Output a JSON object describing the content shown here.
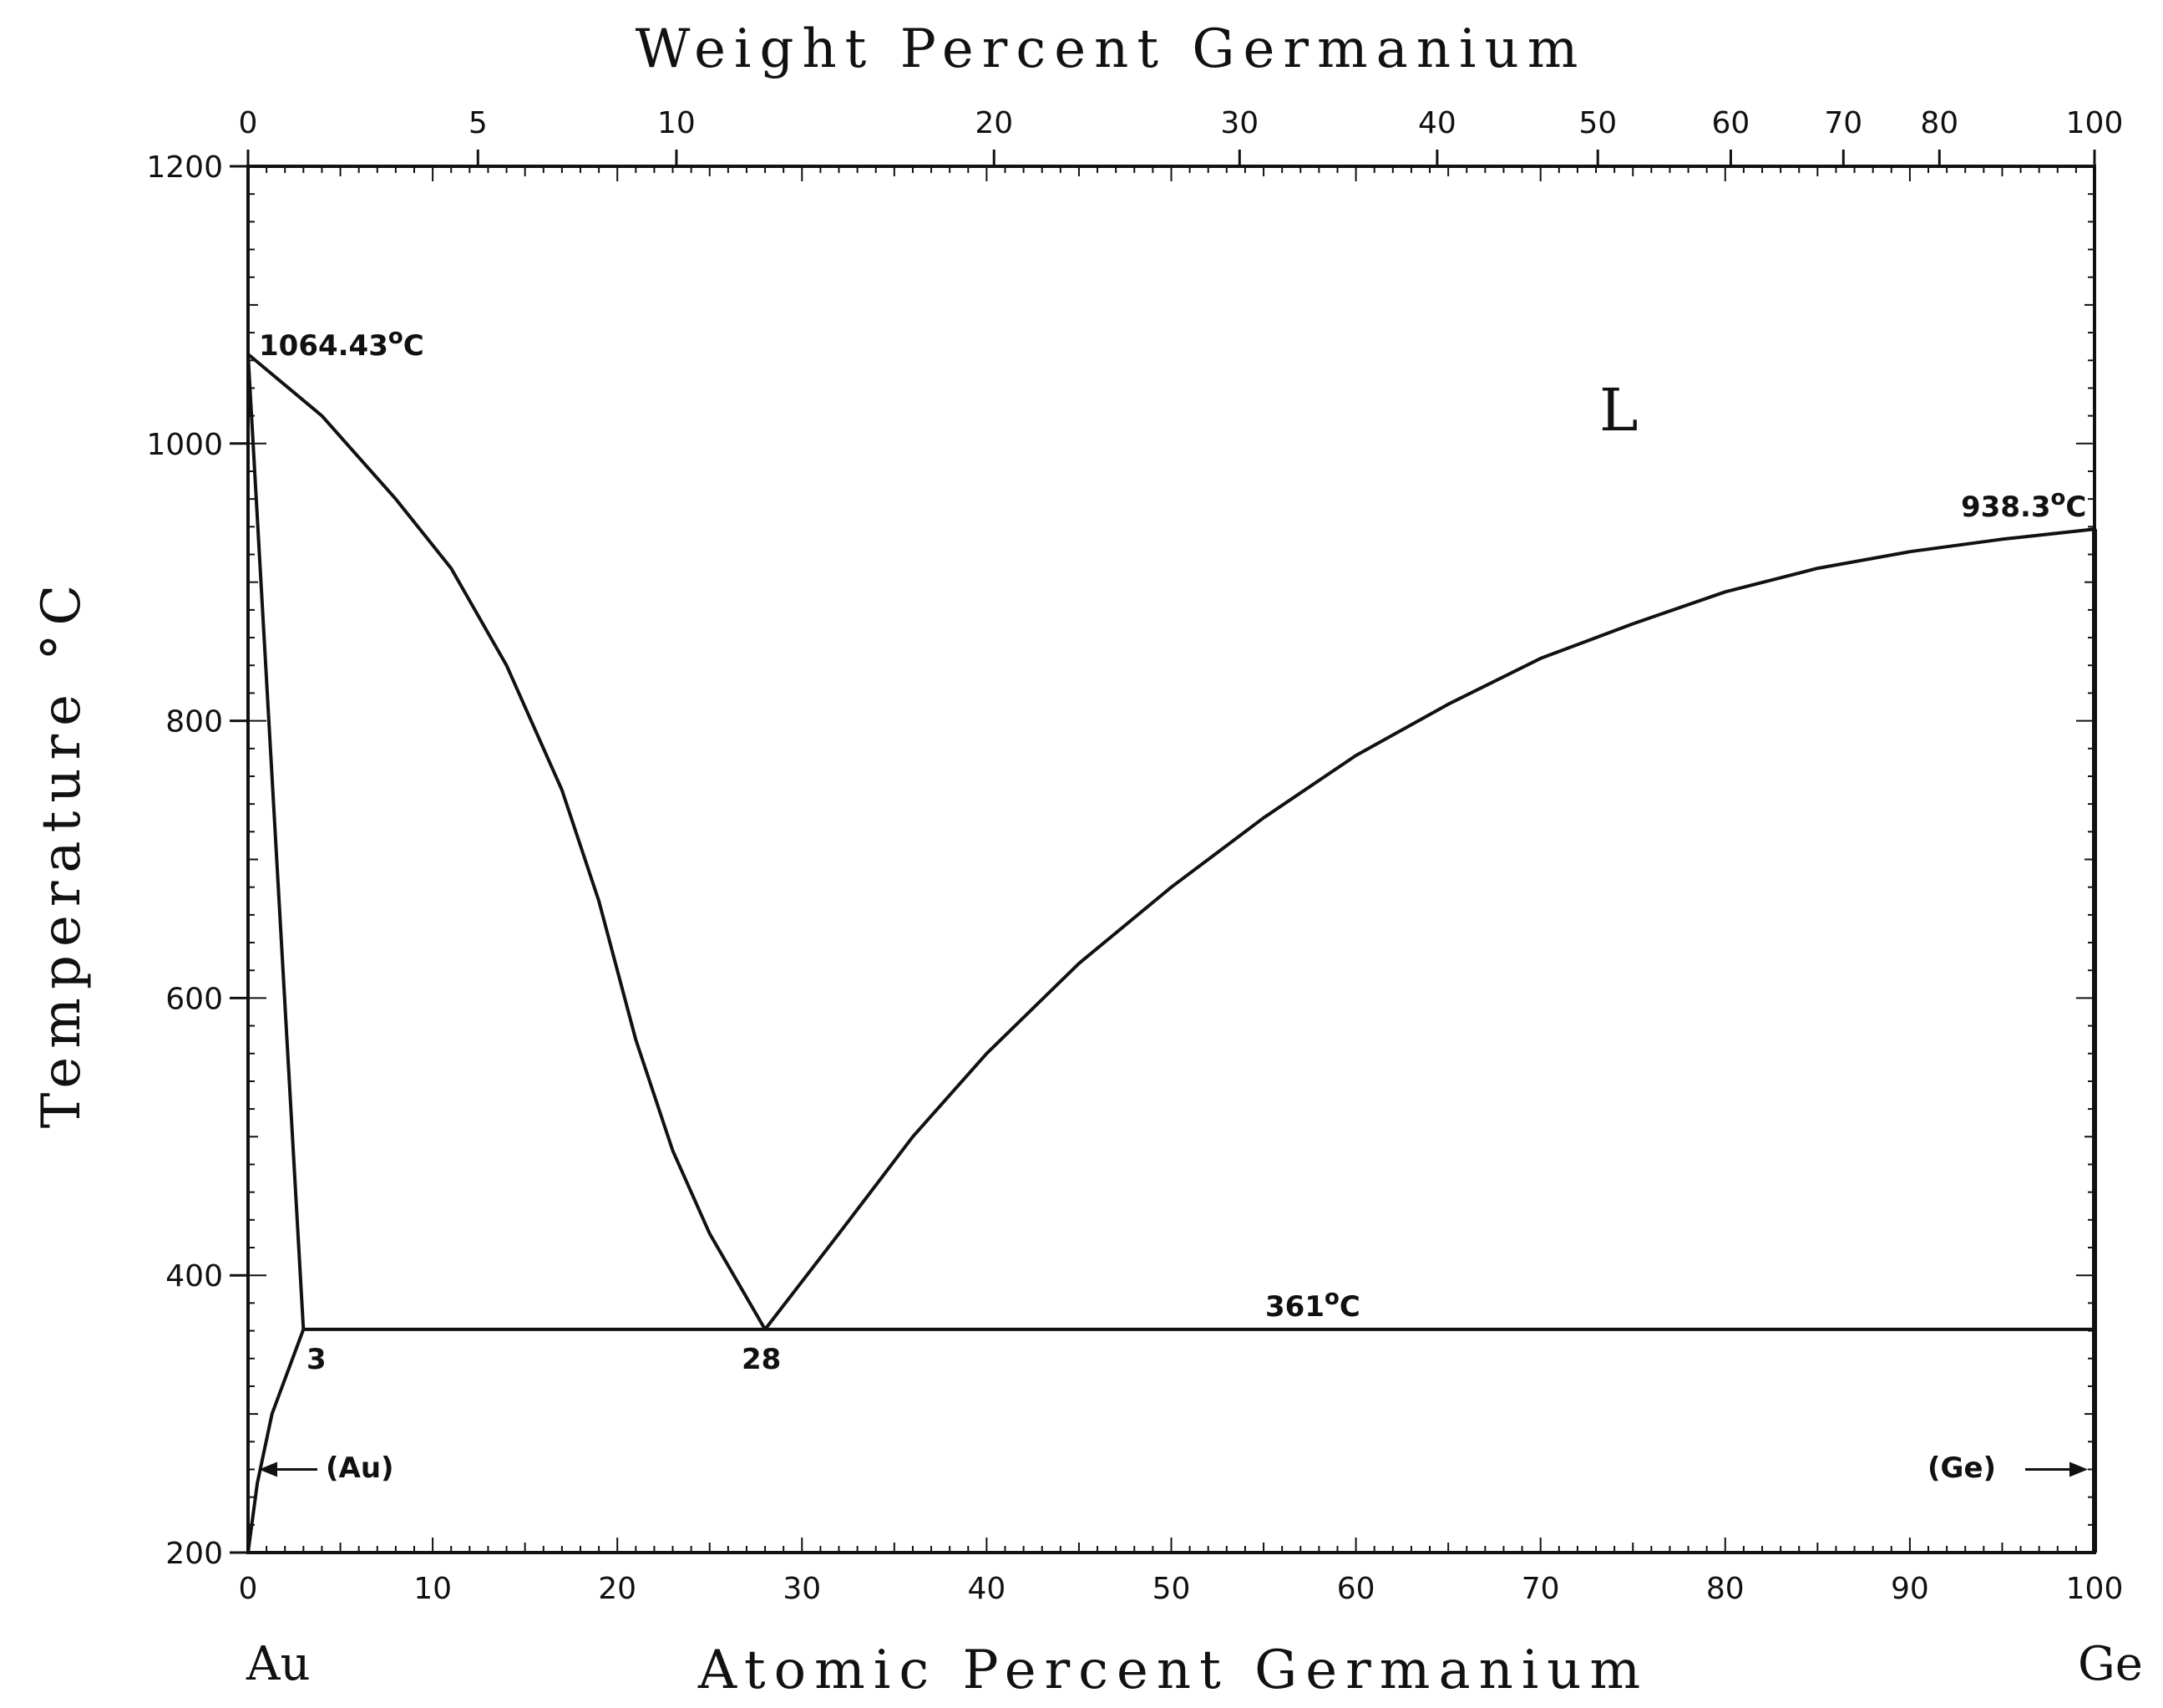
{
  "chart_data": {
    "type": "line",
    "title": "",
    "xlabel": "Atomic Percent Germanium",
    "x2label": "Weight Percent Germanium",
    "ylabel": "Temperature °C",
    "xlim": [
      0,
      100
    ],
    "ylim": [
      200,
      1200
    ],
    "x_ticks": [
      0,
      10,
      20,
      30,
      40,
      50,
      60,
      70,
      80,
      90,
      100
    ],
    "y_ticks": [
      200,
      400,
      600,
      800,
      1000,
      1200
    ],
    "top_ticks": [
      {
        "label": "0",
        "at": 0
      },
      {
        "label": "5",
        "at": 12.45
      },
      {
        "label": "10",
        "at": 23.2
      },
      {
        "label": "20",
        "at": 40.4
      },
      {
        "label": "30",
        "at": 53.7
      },
      {
        "label": "40",
        "at": 64.4
      },
      {
        "label": "50",
        "at": 73.1
      },
      {
        "label": "60",
        "at": 80.3
      },
      {
        "label": "70",
        "at": 86.4
      },
      {
        "label": "80",
        "at": 91.6
      },
      {
        "label": "100",
        "at": 100
      }
    ],
    "series": [
      {
        "points": [
          [
            0,
            1064.43
          ],
          [
            3,
            361
          ]
        ]
      },
      {
        "points": [
          [
            0,
            200
          ],
          [
            0.5,
            250
          ],
          [
            1.3,
            300
          ],
          [
            3,
            361
          ]
        ]
      },
      {
        "points": [
          [
            0,
            1064.43
          ],
          [
            4,
            1020
          ],
          [
            8,
            960
          ],
          [
            11,
            910
          ],
          [
            14,
            840
          ],
          [
            17,
            750
          ],
          [
            19,
            670
          ],
          [
            21,
            570
          ],
          [
            23,
            490
          ],
          [
            25,
            430
          ],
          [
            28,
            361
          ]
        ]
      },
      {
        "points": [
          [
            28,
            361
          ],
          [
            32,
            430
          ],
          [
            36,
            500
          ],
          [
            40,
            560
          ],
          [
            45,
            625
          ],
          [
            50,
            680
          ],
          [
            55,
            730
          ],
          [
            60,
            775
          ],
          [
            65,
            812
          ],
          [
            70,
            845
          ],
          [
            75,
            870
          ],
          [
            80,
            893
          ],
          [
            85,
            910
          ],
          [
            90,
            922
          ],
          [
            95,
            931
          ],
          [
            100,
            938.3
          ]
        ]
      },
      {
        "points": [
          [
            3,
            361
          ],
          [
            28,
            361
          ],
          [
            100,
            361
          ]
        ]
      },
      {
        "points": [
          [
            100,
            200
          ],
          [
            100,
            938.3
          ]
        ]
      }
    ],
    "annotations": {
      "au_melt": {
        "text": "1064.43",
        "sup": "o",
        "unit": "C"
      },
      "ge_melt": {
        "text": "938.3",
        "sup": "o",
        "unit": "C"
      },
      "eutectic": {
        "text": "361",
        "sup": "o",
        "unit": "C"
      },
      "comp_3": "3",
      "comp_28": "28",
      "liquid": "L",
      "au_phase": "(Au)",
      "ge_phase": "(Ge)",
      "left_element": "Au",
      "right_element": "Ge"
    }
  }
}
